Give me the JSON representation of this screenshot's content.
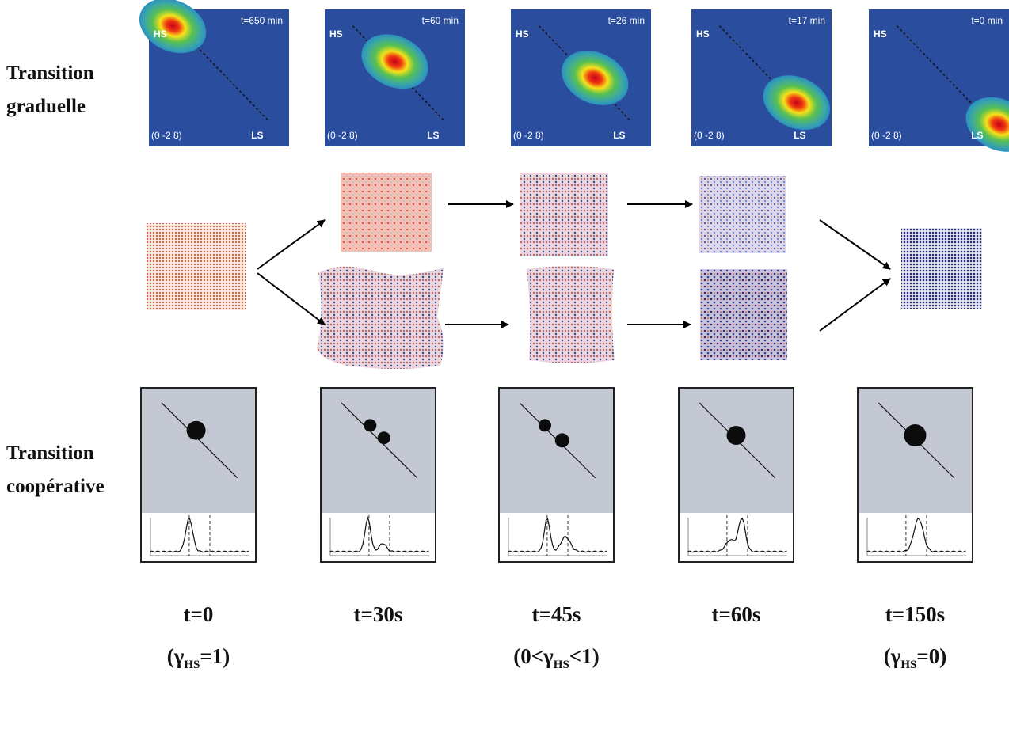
{
  "row_labels": [
    {
      "lines": [
        "Transition",
        "graduelle"
      ]
    },
    {
      "lines": [
        "Transition",
        "coopérative"
      ]
    }
  ],
  "gradual_panels": [
    {
      "time": "t=650 min",
      "hs": "HS",
      "ls": "LS",
      "index": "(0 -2 8)"
    },
    {
      "time": "t=60 min",
      "hs": "HS",
      "ls": "LS",
      "index": "(0 -2 8)"
    },
    {
      "time": "t=26 min",
      "hs": "HS",
      "ls": "LS",
      "index": "(0 -2 8)"
    },
    {
      "time": "t=17 min",
      "hs": "HS",
      "ls": "LS",
      "index": "(0 -2 8)"
    },
    {
      "time": "t=0 min",
      "hs": "HS",
      "ls": "LS",
      "index": "(0 -2 8)"
    }
  ],
  "cooperative_panels": [
    {
      "time": "t=0",
      "fraction": {
        "before": "(γ",
        "sub": "HS",
        "after": "=1)"
      }
    },
    {
      "time": "t=30s"
    },
    {
      "time": "t=45s",
      "fraction": {
        "before": "(0<γ",
        "sub": "HS",
        "after": "<1)"
      }
    },
    {
      "time": "t=60s"
    },
    {
      "time": "t=150s",
      "fraction": {
        "before": "(γ",
        "sub": "HS",
        "after": "=0)"
      }
    }
  ]
}
